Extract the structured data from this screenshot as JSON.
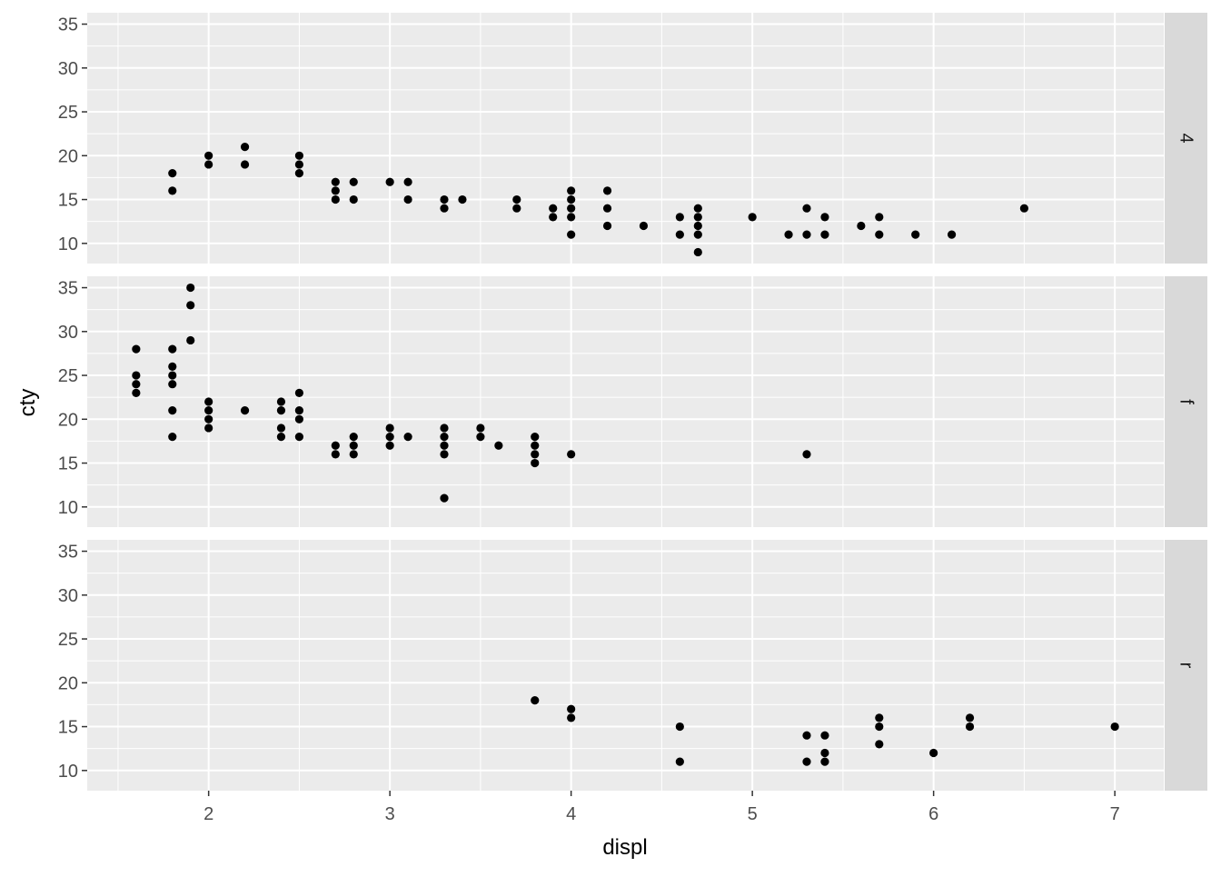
{
  "chart_data": {
    "type": "scatter",
    "xlabel": "displ",
    "ylabel": "cty",
    "xlim": [
      1.33,
      7.27
    ],
    "ylim": [
      7.7,
      36.3
    ],
    "x_ticks": [
      2,
      3,
      4,
      5,
      6,
      7
    ],
    "y_ticks": [
      10,
      15,
      20,
      25,
      30,
      35
    ],
    "grid": true,
    "facet_strip_position": "right",
    "facets": [
      {
        "label": "4",
        "points": [
          [
            1.8,
            18
          ],
          [
            1.8,
            16
          ],
          [
            2.0,
            20
          ],
          [
            2.0,
            19
          ],
          [
            2.2,
            21
          ],
          [
            2.2,
            19
          ],
          [
            2.5,
            20
          ],
          [
            2.5,
            19
          ],
          [
            2.5,
            18
          ],
          [
            2.7,
            17
          ],
          [
            2.7,
            16
          ],
          [
            2.7,
            15
          ],
          [
            2.8,
            17
          ],
          [
            2.8,
            15
          ],
          [
            3.0,
            17
          ],
          [
            3.1,
            17
          ],
          [
            3.1,
            15
          ],
          [
            3.3,
            15
          ],
          [
            3.3,
            14
          ],
          [
            3.4,
            15
          ],
          [
            3.7,
            15
          ],
          [
            3.7,
            14
          ],
          [
            3.9,
            14
          ],
          [
            3.9,
            13
          ],
          [
            4.0,
            16
          ],
          [
            4.0,
            15
          ],
          [
            4.0,
            14
          ],
          [
            4.0,
            13
          ],
          [
            4.0,
            11
          ],
          [
            4.2,
            16
          ],
          [
            4.2,
            14
          ],
          [
            4.2,
            12
          ],
          [
            4.4,
            12
          ],
          [
            4.6,
            13
          ],
          [
            4.6,
            11
          ],
          [
            4.7,
            14
          ],
          [
            4.7,
            13
          ],
          [
            4.7,
            12
          ],
          [
            4.7,
            11
          ],
          [
            4.7,
            9
          ],
          [
            5.0,
            13
          ],
          [
            5.2,
            11
          ],
          [
            5.3,
            14
          ],
          [
            5.3,
            11
          ],
          [
            5.4,
            13
          ],
          [
            5.4,
            11
          ],
          [
            5.6,
            12
          ],
          [
            5.7,
            13
          ],
          [
            5.7,
            11
          ],
          [
            5.9,
            11
          ],
          [
            6.1,
            11
          ],
          [
            6.5,
            14
          ]
        ]
      },
      {
        "label": "f",
        "points": [
          [
            1.6,
            28
          ],
          [
            1.6,
            25
          ],
          [
            1.6,
            24
          ],
          [
            1.6,
            23
          ],
          [
            1.8,
            28
          ],
          [
            1.8,
            26
          ],
          [
            1.8,
            25
          ],
          [
            1.8,
            24
          ],
          [
            1.8,
            21
          ],
          [
            1.8,
            18
          ],
          [
            1.9,
            35
          ],
          [
            1.9,
            33
          ],
          [
            1.9,
            29
          ],
          [
            2.0,
            22
          ],
          [
            2.0,
            21
          ],
          [
            2.0,
            20
          ],
          [
            2.0,
            19
          ],
          [
            2.2,
            21
          ],
          [
            2.4,
            22
          ],
          [
            2.4,
            21
          ],
          [
            2.4,
            19
          ],
          [
            2.4,
            18
          ],
          [
            2.5,
            23
          ],
          [
            2.5,
            21
          ],
          [
            2.5,
            20
          ],
          [
            2.5,
            18
          ],
          [
            2.7,
            17
          ],
          [
            2.7,
            16
          ],
          [
            2.8,
            18
          ],
          [
            2.8,
            17
          ],
          [
            2.8,
            16
          ],
          [
            3.0,
            19
          ],
          [
            3.0,
            18
          ],
          [
            3.0,
            17
          ],
          [
            3.1,
            18
          ],
          [
            3.3,
            19
          ],
          [
            3.3,
            18
          ],
          [
            3.3,
            17
          ],
          [
            3.3,
            16
          ],
          [
            3.3,
            11
          ],
          [
            3.5,
            19
          ],
          [
            3.5,
            18
          ],
          [
            3.6,
            17
          ],
          [
            3.8,
            18
          ],
          [
            3.8,
            17
          ],
          [
            3.8,
            16
          ],
          [
            3.8,
            15
          ],
          [
            4.0,
            16
          ],
          [
            5.3,
            16
          ]
        ]
      },
      {
        "label": "r",
        "points": [
          [
            3.8,
            18
          ],
          [
            4.0,
            17
          ],
          [
            4.0,
            16
          ],
          [
            4.6,
            15
          ],
          [
            4.6,
            11
          ],
          [
            5.3,
            14
          ],
          [
            5.3,
            11
          ],
          [
            5.4,
            14
          ],
          [
            5.4,
            12
          ],
          [
            5.4,
            11
          ],
          [
            5.7,
            16
          ],
          [
            5.7,
            15
          ],
          [
            5.7,
            13
          ],
          [
            6.0,
            12
          ],
          [
            6.2,
            16
          ],
          [
            6.2,
            15
          ],
          [
            7.0,
            15
          ]
        ]
      }
    ]
  }
}
